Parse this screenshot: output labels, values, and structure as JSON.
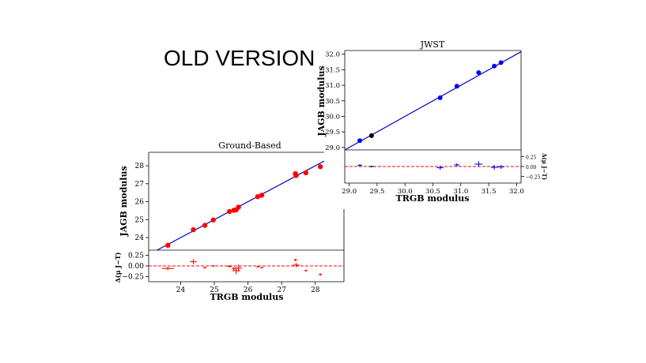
{
  "slide": {
    "stamp": "OLD VERSION"
  },
  "chart_data": [
    {
      "type": "scatter",
      "title": "Ground-Based",
      "xlabel": "TRGB modulus",
      "ylabel": "JAGB modulus",
      "residual_ylabel": "Δ(μ J−T)",
      "xlim": [
        23.05,
        28.85
      ],
      "ylim": [
        23.3,
        28.75
      ],
      "residual_ylim": [
        -0.37,
        0.37
      ],
      "xticks": [
        "24",
        "25",
        "26",
        "27",
        "28"
      ],
      "yticks": [
        "24",
        "25",
        "26",
        "27",
        "28"
      ],
      "residual_yticks": [
        "0.25",
        "0.00",
        "−0.25"
      ],
      "point_color": "#ff0000",
      "line_color": "#0000cc",
      "residual_line_color": "#ff0000",
      "fit_line": [
        [
          23.05,
          23.05
        ],
        [
          28.85,
          28.85
        ]
      ],
      "points": [
        {
          "x": 23.62,
          "y": 23.57,
          "r": -0.06,
          "xerr": 0.18,
          "rerr": 0.04
        },
        {
          "x": 24.38,
          "y": 24.44,
          "r": 0.1,
          "xerr": 0.1,
          "rerr": 0.06
        },
        {
          "x": 24.72,
          "y": 24.68,
          "r": -0.04,
          "xerr": 0.05,
          "rerr": 0.02
        },
        {
          "x": 24.97,
          "y": 24.98,
          "r": 0.0,
          "xerr": 0.04,
          "rerr": 0.02
        },
        {
          "x": 25.45,
          "y": 25.45,
          "r": -0.01,
          "xerr": 0.07,
          "rerr": 0.03
        },
        {
          "x": 25.58,
          "y": 25.52,
          "r": -0.06,
          "xerr": 0.06,
          "rerr": 0.04
        },
        {
          "x": 25.65,
          "y": 25.55,
          "r": -0.11,
          "xerr": 0.12,
          "rerr": 0.08
        },
        {
          "x": 25.72,
          "y": 25.7,
          "r": -0.05,
          "xerr": 0.1,
          "rerr": 0.08
        },
        {
          "x": 26.29,
          "y": 26.28,
          "r": -0.02,
          "xerr": 0.04,
          "rerr": 0.02
        },
        {
          "x": 26.41,
          "y": 26.36,
          "r": -0.04,
          "xerr": 0.05,
          "rerr": 0.02
        },
        {
          "x": 27.41,
          "y": 27.56,
          "r": 0.14,
          "xerr": 0.05,
          "rerr": 0.03
        },
        {
          "x": 27.43,
          "y": 27.46,
          "r": 0.02,
          "xerr": 0.1,
          "rerr": 0.05
        },
        {
          "x": 27.72,
          "y": 27.61,
          "r": -0.11,
          "xerr": 0.05,
          "rerr": 0.02
        },
        {
          "x": 28.15,
          "y": 27.95,
          "r": -0.2,
          "xerr": 0.05,
          "rerr": 0.03
        }
      ]
    },
    {
      "type": "scatter",
      "title": "JWST",
      "xlabel": "TRGB modulus",
      "ylabel": "JAGB modulus",
      "residual_ylabel": "Δ(μ J−T)",
      "xlim": [
        28.92,
        32.08
      ],
      "ylim": [
        28.92,
        32.12
      ],
      "residual_ylim": [
        -0.42,
        0.42
      ],
      "xticks": [
        "29.0",
        "29.5",
        "30.0",
        "30.5",
        "31.0",
        "31.5",
        "32.0"
      ],
      "yticks": [
        "29.0",
        "29.5",
        "30.0",
        "30.5",
        "31.0",
        "31.5",
        "32.0"
      ],
      "residual_yticks": [
        "0.25",
        "0.00",
        "−0.25"
      ],
      "point_color": "#0000ff",
      "line_color": "#0000cc",
      "residual_line_color": "#ff0000",
      "fit_line": [
        [
          28.92,
          28.92
        ],
        [
          32.08,
          32.08
        ]
      ],
      "points": [
        {
          "x": 29.19,
          "y": 29.22,
          "r": 0.03,
          "xerr": 0.04,
          "rerr": 0.03,
          "color": "#0000ff"
        },
        {
          "x": 29.4,
          "y": 29.38,
          "r": 0.0,
          "xerr": 0.05,
          "rerr": 0.02,
          "color": "#000000"
        },
        {
          "x": 30.63,
          "y": 30.6,
          "r": -0.03,
          "xerr": 0.06,
          "rerr": 0.05,
          "color": "#0000ff"
        },
        {
          "x": 30.93,
          "y": 30.97,
          "r": 0.04,
          "xerr": 0.05,
          "rerr": 0.04,
          "color": "#0000ff"
        },
        {
          "x": 31.32,
          "y": 31.41,
          "r": 0.06,
          "xerr": 0.07,
          "rerr": 0.07,
          "color": "#0000ff"
        },
        {
          "x": 31.6,
          "y": 31.62,
          "r": -0.02,
          "xerr": 0.06,
          "rerr": 0.06,
          "color": "#0000ff"
        },
        {
          "x": 31.72,
          "y": 31.73,
          "r": -0.01,
          "xerr": 0.06,
          "rerr": 0.05,
          "color": "#0000ff"
        }
      ]
    }
  ]
}
